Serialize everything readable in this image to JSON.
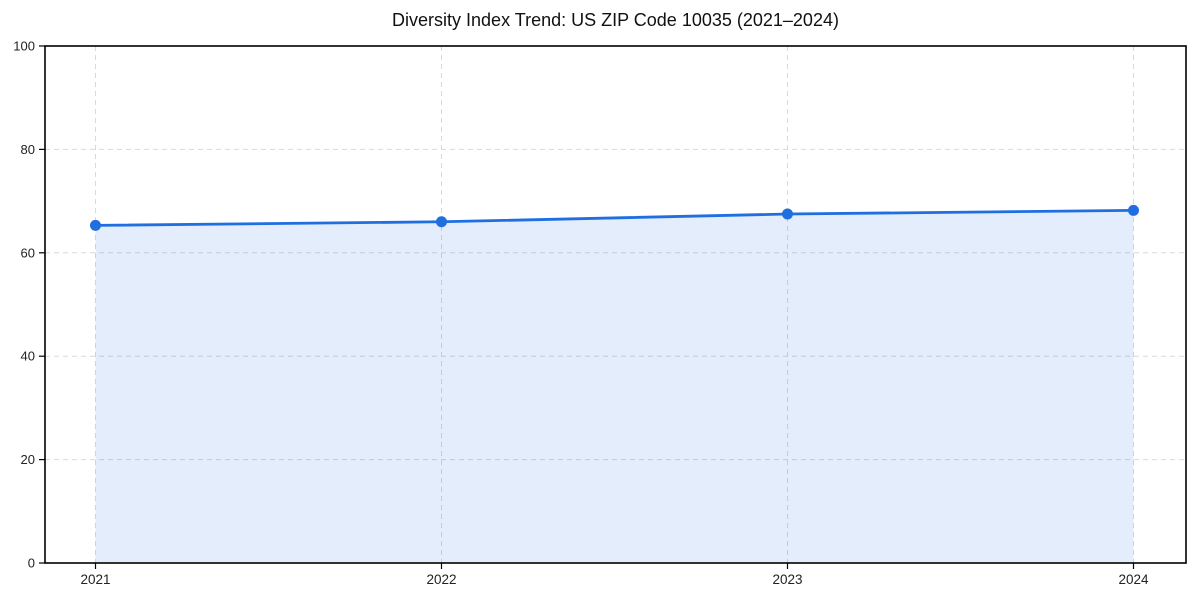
{
  "title": "Diversity Index Trend: US ZIP Code 10035 (2021–2024)",
  "colors": {
    "line": "#1f6fe0",
    "marker": "#1f6fe0",
    "fill": "rgba(31,111,224,0.12)",
    "grid": "#d9d9d9",
    "axis": "#000000",
    "tick_text": "#222222",
    "title_text": "#111111",
    "background": "#ffffff"
  },
  "chart_data": {
    "type": "area",
    "title": "Diversity Index Trend: US ZIP Code 10035 (2021–2024)",
    "categories": [
      "2021",
      "2022",
      "2023",
      "2024"
    ],
    "series": [
      {
        "name": "Diversity Index",
        "values": [
          65.3,
          66.0,
          67.5,
          68.2
        ]
      }
    ],
    "xlabel": "",
    "ylabel": "",
    "ylim": [
      0,
      100
    ],
    "yticks": [
      0,
      20,
      40,
      60,
      80,
      100
    ],
    "grid": true,
    "grid_style": "dashed",
    "legend": false,
    "marker": "circle",
    "line_width": 2.8,
    "marker_radius": 5.5
  }
}
